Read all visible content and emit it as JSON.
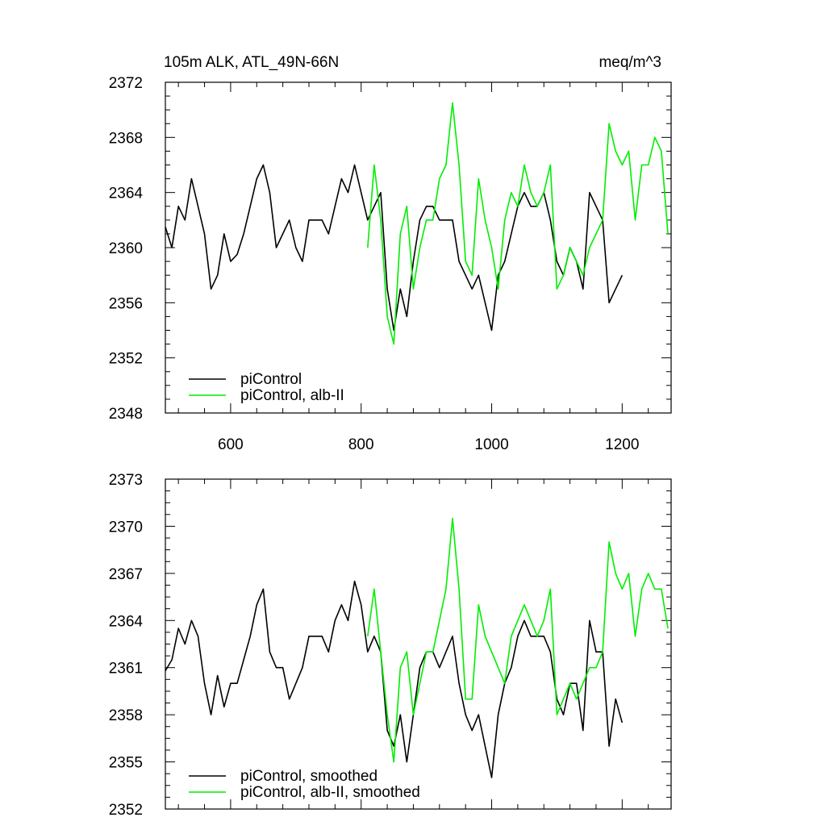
{
  "colors": {
    "control": "#000000",
    "alb": "#00ee00",
    "axis": "#000000",
    "background": "#ffffff"
  },
  "chart_data": [
    {
      "type": "line",
      "title": "105m ALK, ATL_49N-66N",
      "units": "meq/m^3",
      "xlim": [
        500,
        1275
      ],
      "ylim": [
        2348,
        2372
      ],
      "xticks": [
        600,
        800,
        1000,
        1200
      ],
      "xtick_labels": [
        "600",
        "800",
        "1000",
        "1200"
      ],
      "yticks": [
        2348,
        2352,
        2356,
        2360,
        2364,
        2368,
        2372
      ],
      "ytick_labels": [
        "2348",
        "2352",
        "2356",
        "2360",
        "2364",
        "2368",
        "2372"
      ],
      "grid": false,
      "legend_position": "bottom-left",
      "series": [
        {
          "name": "piControl",
          "color": "#000000",
          "x": [
            500,
            510,
            520,
            530,
            540,
            550,
            560,
            570,
            580,
            590,
            600,
            610,
            620,
            630,
            640,
            650,
            660,
            670,
            680,
            690,
            700,
            710,
            720,
            730,
            740,
            750,
            760,
            770,
            780,
            790,
            800,
            810,
            820,
            830,
            840,
            850,
            860,
            870,
            880,
            890,
            900,
            910,
            920,
            930,
            940,
            950,
            960,
            970,
            980,
            990,
            1000,
            1010,
            1020,
            1030,
            1040,
            1050,
            1060,
            1070,
            1080,
            1090,
            1100,
            1110,
            1120,
            1130,
            1140,
            1150,
            1160,
            1170,
            1180,
            1190,
            1200
          ],
          "y": [
            2361.5,
            2360,
            2363,
            2362,
            2365,
            2363,
            2361,
            2357,
            2358,
            2361,
            2359,
            2359.5,
            2361,
            2363,
            2365,
            2366,
            2364,
            2360,
            2361,
            2362,
            2360,
            2359,
            2362,
            2362,
            2362,
            2361,
            2363,
            2365,
            2364,
            2366,
            2364,
            2362,
            2363,
            2364,
            2357,
            2354,
            2357,
            2355,
            2359,
            2362,
            2363,
            2363,
            2362,
            2362,
            2362,
            2359,
            2358,
            2357,
            2358,
            2356,
            2354,
            2358,
            2359,
            2361,
            2363,
            2364,
            2363,
            2363,
            2364,
            2362,
            2359,
            2358,
            2360,
            2359,
            2357,
            2364,
            2363,
            2362,
            2356,
            2357,
            2358
          ]
        },
        {
          "name": "piControl, alb-II",
          "color": "#00ee00",
          "x": [
            810,
            820,
            830,
            840,
            850,
            860,
            870,
            880,
            890,
            900,
            910,
            920,
            930,
            940,
            950,
            960,
            970,
            980,
            990,
            1000,
            1010,
            1020,
            1030,
            1040,
            1050,
            1060,
            1070,
            1080,
            1090,
            1100,
            1110,
            1120,
            1130,
            1140,
            1150,
            1160,
            1170,
            1180,
            1190,
            1200,
            1210,
            1220,
            1230,
            1240,
            1250,
            1260,
            1270
          ],
          "y": [
            2360,
            2366,
            2362,
            2355,
            2353,
            2361,
            2363,
            2357,
            2360,
            2362,
            2362,
            2365,
            2366,
            2370.5,
            2366,
            2359,
            2358,
            2365,
            2362,
            2360,
            2357,
            2362,
            2364,
            2363,
            2366,
            2364,
            2363,
            2364,
            2366,
            2357,
            2358,
            2360,
            2359,
            2358,
            2360,
            2361,
            2362,
            2369,
            2367,
            2366,
            2367,
            2362,
            2366,
            2366,
            2368,
            2367,
            2361
          ]
        }
      ]
    },
    {
      "type": "line",
      "xlim": [
        500,
        1275
      ],
      "ylim": [
        2352,
        2373
      ],
      "xticks": [
        600,
        800,
        1000,
        1200
      ],
      "yticks": [
        2352,
        2355,
        2358,
        2361,
        2364,
        2367,
        2370,
        2373
      ],
      "ytick_labels": [
        "2352",
        "2355",
        "2358",
        "2361",
        "2364",
        "2367",
        "2370",
        "2373"
      ],
      "grid": false,
      "legend_position": "bottom-left",
      "series": [
        {
          "name": "piControl, smoothed",
          "color": "#000000",
          "x": [
            500,
            510,
            520,
            530,
            540,
            550,
            560,
            570,
            580,
            590,
            600,
            610,
            620,
            630,
            640,
            650,
            660,
            670,
            680,
            690,
            700,
            710,
            720,
            730,
            740,
            750,
            760,
            770,
            780,
            790,
            800,
            810,
            820,
            830,
            840,
            850,
            860,
            870,
            880,
            890,
            900,
            910,
            920,
            930,
            940,
            950,
            960,
            970,
            980,
            990,
            1000,
            1010,
            1020,
            1030,
            1040,
            1050,
            1060,
            1070,
            1080,
            1090,
            1100,
            1110,
            1120,
            1130,
            1140,
            1150,
            1160,
            1170,
            1180,
            1190,
            1200
          ],
          "y": [
            2360.8,
            2361.5,
            2363.5,
            2362.5,
            2364,
            2363,
            2360,
            2358,
            2360.5,
            2358.5,
            2360,
            2360,
            2361.5,
            2363,
            2365,
            2366,
            2362,
            2361,
            2361,
            2359,
            2360,
            2361,
            2363,
            2363,
            2363,
            2362,
            2364,
            2365,
            2364,
            2366.5,
            2365,
            2362,
            2363,
            2362,
            2357,
            2356,
            2358,
            2355,
            2358,
            2361,
            2362,
            2362,
            2361,
            2362,
            2363,
            2360,
            2358,
            2357,
            2358,
            2356,
            2354,
            2358,
            2360,
            2361,
            2363,
            2364,
            2363,
            2363,
            2363,
            2362,
            2359,
            2358,
            2360,
            2360,
            2357,
            2364,
            2362,
            2362,
            2356,
            2359,
            2357.5
          ]
        },
        {
          "name": "piControl, alb-II, smoothed",
          "color": "#00ee00",
          "x": [
            810,
            820,
            830,
            840,
            850,
            860,
            870,
            880,
            890,
            900,
            910,
            920,
            930,
            940,
            950,
            960,
            970,
            980,
            990,
            1000,
            1010,
            1020,
            1030,
            1040,
            1050,
            1060,
            1070,
            1080,
            1090,
            1100,
            1110,
            1120,
            1130,
            1140,
            1150,
            1160,
            1170,
            1180,
            1190,
            1200,
            1210,
            1220,
            1230,
            1240,
            1250,
            1260,
            1270
          ],
          "y": [
            2363,
            2366,
            2362,
            2358,
            2355,
            2361,
            2362,
            2358,
            2360,
            2362,
            2362,
            2364,
            2366,
            2370.5,
            2366,
            2359,
            2359,
            2365,
            2363,
            2362,
            2361,
            2360,
            2363,
            2364,
            2365,
            2364,
            2363,
            2364,
            2366,
            2358,
            2359,
            2360,
            2359,
            2360,
            2361,
            2361,
            2362,
            2369,
            2367,
            2366,
            2367,
            2363,
            2366,
            2367,
            2366,
            2366,
            2363.5
          ]
        }
      ]
    }
  ]
}
